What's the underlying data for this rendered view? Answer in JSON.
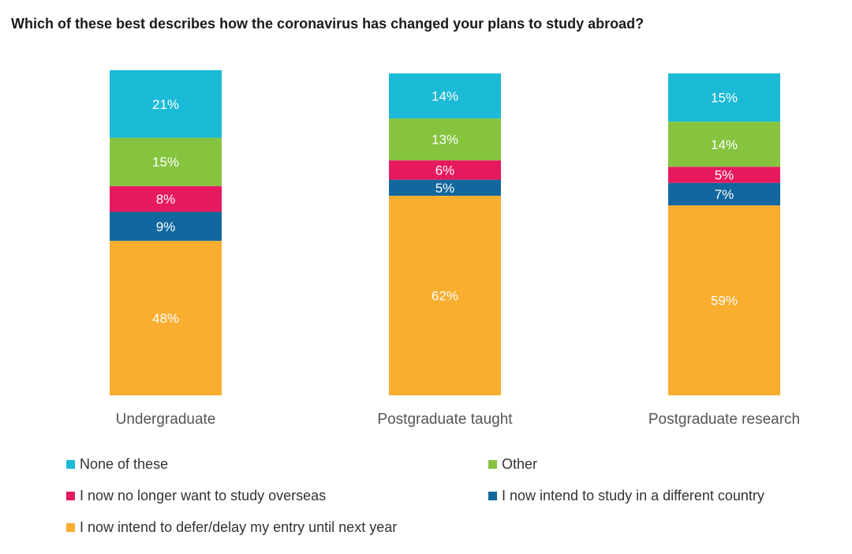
{
  "title": "Which of these best describes how the coronavirus has changed your plans to study abroad?",
  "chart_data": {
    "type": "bar",
    "stacked": true,
    "orientation": "vertical",
    "categories": [
      "Undergraduate",
      "Postgraduate taught",
      "Postgraduate research"
    ],
    "series": [
      {
        "name": "I now intend to defer/delay my entry until next year",
        "color": "#f9ae2f",
        "values": [
          48,
          62,
          59
        ],
        "labels": [
          "48%",
          "62%",
          "59%"
        ]
      },
      {
        "name": "I now intend to study in a different country",
        "color": "#11679e",
        "values": [
          9,
          5,
          7
        ],
        "labels": [
          "9%",
          "5%",
          "7%"
        ]
      },
      {
        "name": "I now no longer want to study overseas",
        "color": "#e6195f",
        "values": [
          8,
          6,
          5
        ],
        "labels": [
          "8%",
          "6%",
          "5%"
        ]
      },
      {
        "name": "Other",
        "color": "#86c440",
        "values": [
          15,
          13,
          14
        ],
        "labels": [
          "15%",
          "13%",
          "14%"
        ]
      },
      {
        "name": "None of these",
        "color": "#1bbad6",
        "values": [
          21,
          14,
          15
        ],
        "labels": [
          "21%",
          "14%",
          "15%"
        ]
      }
    ],
    "label_color": "#ffffff",
    "grid": false,
    "legend_position": "bottom",
    "legend": [
      {
        "name": "None of these",
        "color": "#1bbad6"
      },
      {
        "name": "Other",
        "color": "#86c440"
      },
      {
        "name": "I now no longer want to study overseas",
        "color": "#e6195f"
      },
      {
        "name": "I now intend to study in a different country",
        "color": "#11679e"
      },
      {
        "name": "I now intend to defer/delay my entry until next year",
        "color": "#f9ae2f"
      }
    ]
  }
}
